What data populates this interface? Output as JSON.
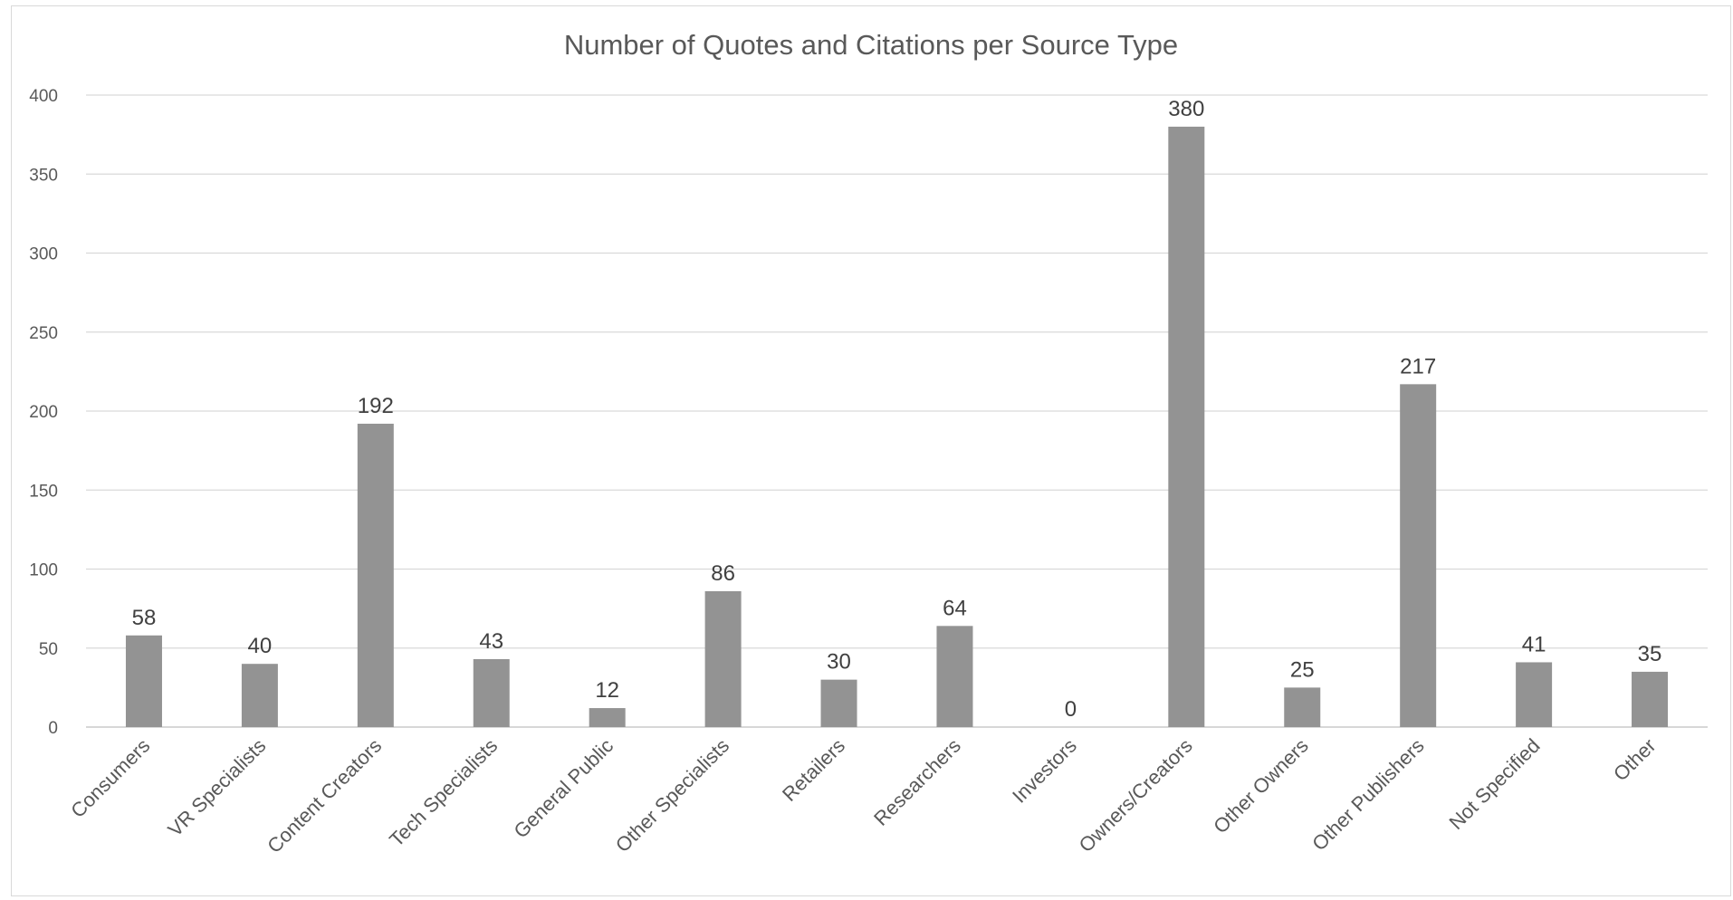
{
  "chart_data": {
    "type": "bar",
    "title": "Number of Quotes and Citations per Source Type",
    "xlabel": "",
    "ylabel": "",
    "categories": [
      "Consumers",
      "VR Specialists",
      "Content Creators",
      "Tech Specialists",
      "General Public",
      "Other Specialists",
      "Retailers",
      "Researchers",
      "Investors",
      "Owners/Creators",
      "Other Owners",
      "Other Publishers",
      "Not Specified",
      "Other"
    ],
    "values": [
      58,
      40,
      192,
      43,
      12,
      86,
      30,
      64,
      0,
      380,
      25,
      217,
      41,
      35
    ],
    "ylim": [
      0,
      400
    ],
    "yticks": [
      0,
      50,
      100,
      150,
      200,
      250,
      300,
      350,
      400
    ],
    "data_labels": true,
    "grid": true,
    "legend": "none",
    "bar_color": "#939393"
  }
}
